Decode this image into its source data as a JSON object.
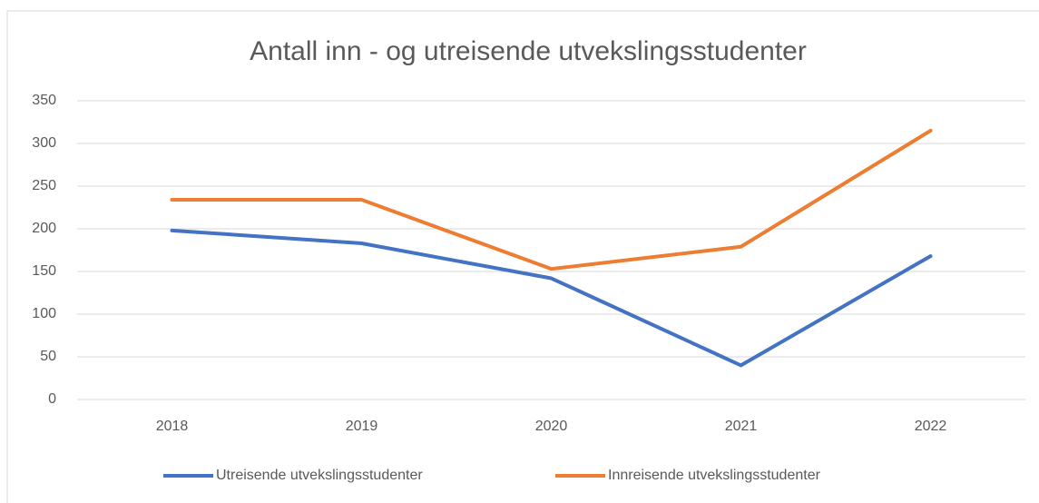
{
  "chart_data": {
    "type": "line",
    "title": "Antall inn - og utreisende utvekslingsstudenter",
    "categories": [
      "2018",
      "2019",
      "2020",
      "2021",
      "2022"
    ],
    "series": [
      {
        "name": "Utreisende utvekslingsstudenter",
        "color": "#4472c4",
        "values": [
          198,
          183,
          142,
          40,
          168
        ]
      },
      {
        "name": "Innreisende utvekslingsstudenter",
        "color": "#ed7d31",
        "values": [
          234,
          234,
          153,
          179,
          315
        ]
      }
    ],
    "ylim": [
      0,
      350
    ],
    "yticks": [
      0,
      50,
      100,
      150,
      200,
      250,
      300,
      350
    ],
    "grid": true,
    "legend": "bottom"
  }
}
